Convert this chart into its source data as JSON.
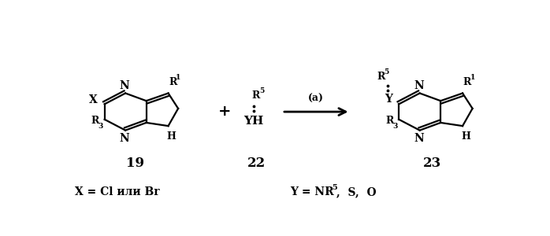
{
  "bg_color": "#ffffff",
  "fig_width": 6.98,
  "fig_height": 3.0,
  "dpi": 100,
  "compound19_label": "19",
  "compound22_label": "22",
  "compound23_label": "23",
  "arrow_label": "(a)",
  "cond_x": "X = Cl или Br",
  "cond_y_pre": "Y = NR",
  "cond_y_sup": "5",
  "cond_y_post": ",  S,  O"
}
